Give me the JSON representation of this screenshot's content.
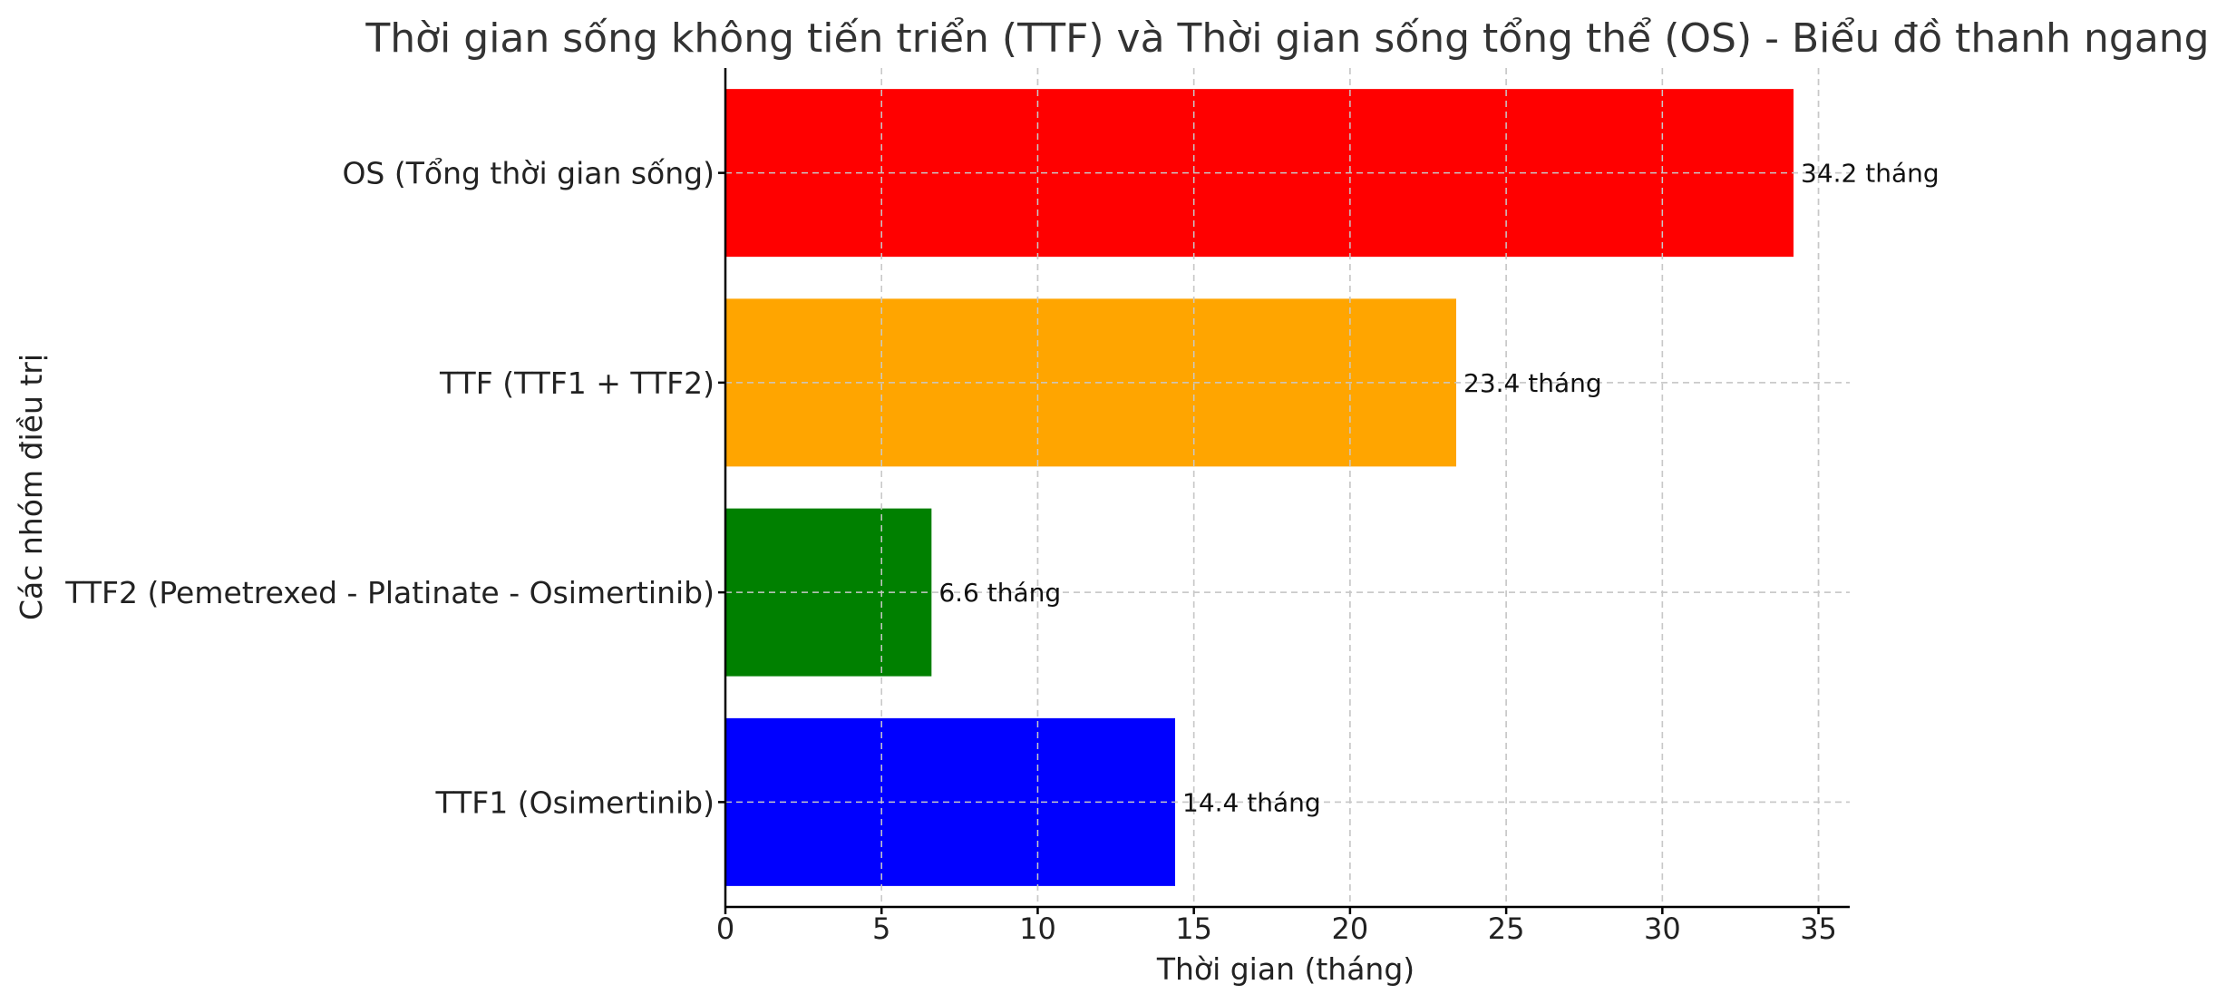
{
  "chart_data": {
    "type": "bar",
    "orientation": "horizontal",
    "title": "Thời gian sống không tiến triển (TTF) và Thời gian sống tổng thể (OS) - Biểu đồ thanh ngang",
    "xlabel": "Thời gian (tháng)",
    "ylabel": "Các nhóm điều trị",
    "categories": [
      "TTF1 (Osimertinib)",
      "TTF2 (Pemetrexed - Platinate - Osimertinib)",
      "TTF (TTF1 + TTF2)",
      "OS (Tổng thời gian sống)"
    ],
    "values": [
      14.4,
      6.6,
      23.4,
      34.2
    ],
    "data_labels": [
      "14.4 tháng",
      "6.6 tháng",
      "23.4 tháng",
      "34.2 tháng"
    ],
    "colors": [
      "#0000ff",
      "#008000",
      "#ffa500",
      "#ff0000"
    ],
    "xlim": [
      0,
      36
    ],
    "xticks": [
      0,
      5,
      10,
      15,
      20,
      25,
      30,
      35
    ],
    "grid": true
  }
}
